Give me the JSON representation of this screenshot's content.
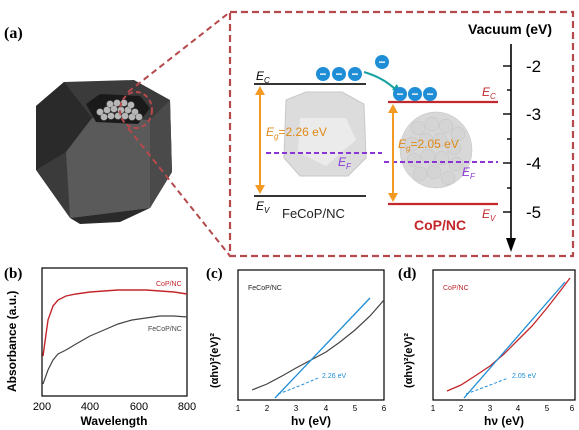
{
  "panel_a": {
    "label": "(a)",
    "vacuum_label": "Vacuum (eV)",
    "scale_ticks": [
      "-2",
      "-3",
      "-4",
      "-5"
    ],
    "ec_symbol": "E",
    "ec_sub": "C",
    "ev_symbol": "E",
    "ev_sub": "V",
    "eg_symbol": "E",
    "eg_sub": "g",
    "ef_symbol": "E",
    "ef_sub": "F",
    "fecop_gap": "=2.26 eV",
    "cop_gap": "=2.05 eV",
    "fecop_name": "FeCoP/NC",
    "cop_name": "CoP/NC",
    "electron_symbol": "−",
    "colors": {
      "dashed_frame": "#b5494c",
      "cop_bands": "#c3262b",
      "gap_arrow": "#f39a23",
      "fermi": "#8a35d6",
      "electron": "#1f8ed6"
    }
  },
  "panel_b": {
    "label": "(b)",
    "ylabel": "Absorbance (a.u.)",
    "xlabel": "Wavelength",
    "series_top": "CoP/NC",
    "series_bottom": "FeCoP/NC",
    "x_ticks": [
      "200",
      "400",
      "600",
      "800"
    ]
  },
  "panel_c": {
    "label": "(c)",
    "ylabel": "(αhν)²(eV)²",
    "xlabel": "hν (eV)",
    "legend": "FeCoP/NC",
    "gap_text": "2.26 eV",
    "x_ticks": [
      "1",
      "2",
      "3",
      "4",
      "5",
      "6"
    ]
  },
  "panel_d": {
    "label": "(d)",
    "ylabel": "(αhν)²(eV)²",
    "xlabel": "hν (eV)",
    "legend": "CoP/NC",
    "gap_text": "2.05 eV",
    "x_ticks": [
      "1",
      "2",
      "3",
      "4",
      "5",
      "6"
    ]
  },
  "chart_data": [
    {
      "type": "line",
      "xlabel": "Wavelength",
      "ylabel": "Absorbance (a.u.)",
      "xlim": [
        200,
        800
      ],
      "series": [
        {
          "name": "CoP/NC",
          "x": [
            200,
            220,
            250,
            300,
            350,
            400,
            450,
            500,
            550,
            600,
            650,
            700,
            750,
            800
          ],
          "y": [
            0.42,
            0.62,
            0.72,
            0.78,
            0.82,
            0.86,
            0.88,
            0.89,
            0.9,
            0.9,
            0.89,
            0.89,
            0.87,
            0.85
          ]
        },
        {
          "name": "FeCoP/NC",
          "x": [
            200,
            220,
            250,
            300,
            350,
            400,
            450,
            500,
            550,
            600,
            650,
            700,
            750,
            800
          ],
          "y": [
            0.1,
            0.22,
            0.3,
            0.36,
            0.43,
            0.5,
            0.55,
            0.58,
            0.61,
            0.63,
            0.64,
            0.64,
            0.64,
            0.63
          ]
        }
      ]
    },
    {
      "type": "line",
      "xlabel": "hν (eV)",
      "ylabel": "(αhν)²(eV)²",
      "xlim": [
        1,
        6
      ],
      "series": [
        {
          "name": "FeCoP/NC",
          "x": [
            1.5,
            2,
            2.5,
            3,
            3.5,
            4,
            4.5,
            5,
            5.5,
            6
          ],
          "y": [
            0.07,
            0.12,
            0.18,
            0.24,
            0.3,
            0.36,
            0.44,
            0.52,
            0.62,
            0.74
          ]
        },
        {
          "name": "",
          "x": [
            2.26,
            5.6
          ],
          "y": [
            0,
            0.74
          ]
        }
      ],
      "annotation": "2.26 eV"
    },
    {
      "type": "line",
      "xlabel": "hν (eV)",
      "ylabel": "(αhν)²(eV)²",
      "xlim": [
        1,
        6
      ],
      "series": [
        {
          "name": "CoP/NC",
          "x": [
            1.5,
            2,
            2.5,
            3,
            3.5,
            4,
            4.5,
            5,
            5.5,
            5.8
          ],
          "y": [
            0.06,
            0.11,
            0.19,
            0.28,
            0.38,
            0.49,
            0.62,
            0.76,
            0.9,
            0.98
          ]
        },
        {
          "name": "",
          "x": [
            2.05,
            5.2
          ],
          "y": [
            0,
            0.9
          ]
        }
      ],
      "annotation": "2.05 eV"
    }
  ]
}
